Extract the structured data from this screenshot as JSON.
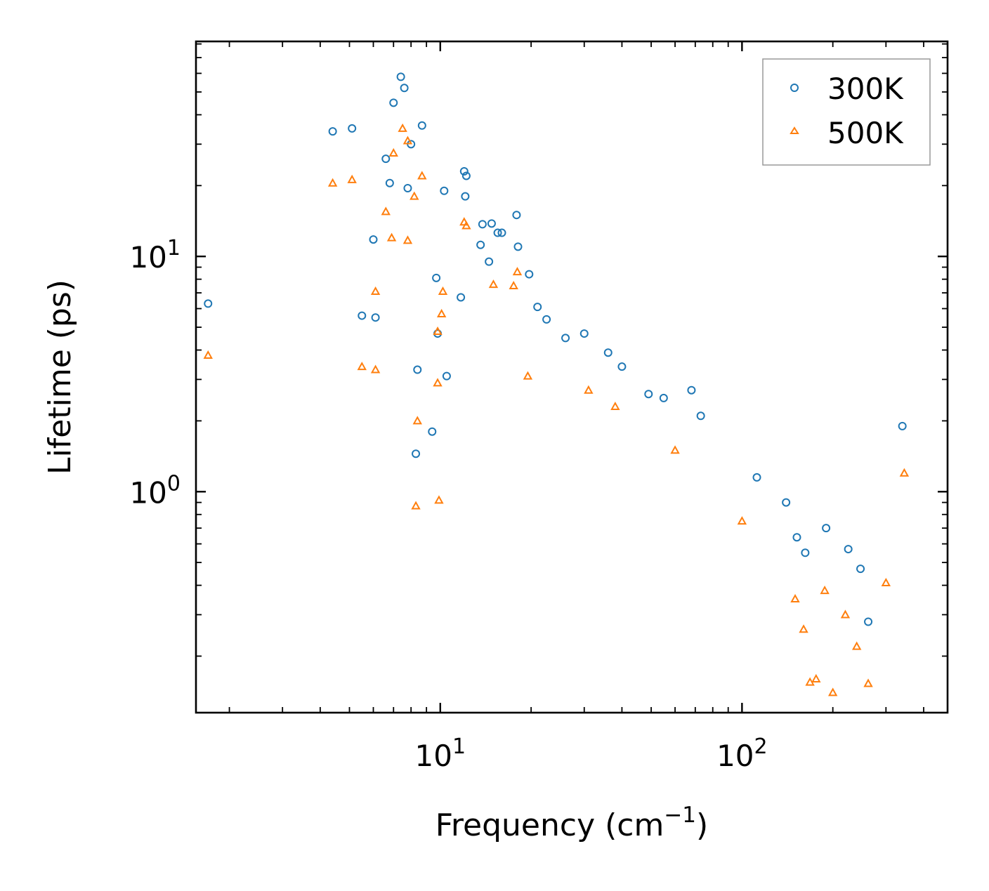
{
  "chart_data": {
    "type": "scatter",
    "title": "",
    "xlabel": "Frequency (cm",
    "xlabel_sup": "−1",
    "xlabel_end": ")",
    "ylabel": "Lifetime (ps)",
    "xscale": "log",
    "yscale": "log",
    "xlim": [
      1.55,
      480
    ],
    "ylim": [
      0.115,
      82
    ],
    "x_ticks": [
      {
        "value": 10,
        "base": "10",
        "exp": "1"
      },
      {
        "value": 100,
        "base": "10",
        "exp": "2"
      }
    ],
    "y_ticks": [
      {
        "value": 1,
        "base": "10",
        "exp": "0"
      },
      {
        "value": 10,
        "base": "10",
        "exp": "1"
      }
    ],
    "legend_position": "top-right",
    "series": [
      {
        "name": "300K",
        "marker": "circle",
        "color": "#1f77b4",
        "points": [
          [
            1.7,
            6.3
          ],
          [
            4.4,
            34
          ],
          [
            5.1,
            35
          ],
          [
            5.5,
            5.6
          ],
          [
            6.0,
            11.8
          ],
          [
            6.1,
            5.5
          ],
          [
            6.6,
            26
          ],
          [
            6.8,
            20.5
          ],
          [
            7.0,
            45
          ],
          [
            7.4,
            58
          ],
          [
            7.6,
            52
          ],
          [
            7.8,
            19.5
          ],
          [
            8.0,
            30
          ],
          [
            8.3,
            1.45
          ],
          [
            8.4,
            3.3
          ],
          [
            8.7,
            36
          ],
          [
            9.4,
            1.8
          ],
          [
            9.7,
            8.1
          ],
          [
            9.8,
            4.7
          ],
          [
            10.3,
            19
          ],
          [
            10.5,
            3.1
          ],
          [
            11.7,
            6.7
          ],
          [
            12.0,
            23
          ],
          [
            12.1,
            18
          ],
          [
            12.2,
            22
          ],
          [
            13.6,
            11.2
          ],
          [
            13.8,
            13.7
          ],
          [
            14.5,
            9.5
          ],
          [
            14.8,
            13.8
          ],
          [
            15.5,
            12.6
          ],
          [
            16.0,
            12.6
          ],
          [
            17.9,
            15
          ],
          [
            18.1,
            11
          ],
          [
            19.7,
            8.4
          ],
          [
            21.0,
            6.1
          ],
          [
            22.5,
            5.4
          ],
          [
            26,
            4.5
          ],
          [
            30,
            4.7
          ],
          [
            36,
            3.9
          ],
          [
            40,
            3.4
          ],
          [
            49,
            2.6
          ],
          [
            55,
            2.5
          ],
          [
            68,
            2.7
          ],
          [
            73,
            2.1
          ],
          [
            112,
            1.15
          ],
          [
            140,
            0.9
          ],
          [
            152,
            0.64
          ],
          [
            162,
            0.55
          ],
          [
            190,
            0.7
          ],
          [
            225,
            0.57
          ],
          [
            247,
            0.47
          ],
          [
            262,
            0.28
          ],
          [
            340,
            1.9
          ]
        ]
      },
      {
        "name": "500K",
        "marker": "triangle",
        "color": "#ff7f0e",
        "points": [
          [
            1.7,
            3.8
          ],
          [
            4.4,
            20.5
          ],
          [
            5.1,
            21.2
          ],
          [
            5.5,
            3.4
          ],
          [
            6.1,
            7.1
          ],
          [
            6.1,
            3.3
          ],
          [
            6.6,
            15.5
          ],
          [
            6.9,
            12
          ],
          [
            7.0,
            27.5
          ],
          [
            7.5,
            35
          ],
          [
            7.8,
            31
          ],
          [
            7.8,
            11.7
          ],
          [
            8.2,
            18
          ],
          [
            8.3,
            0.87
          ],
          [
            8.4,
            2.0
          ],
          [
            8.7,
            22
          ],
          [
            9.8,
            4.8
          ],
          [
            9.8,
            2.9
          ],
          [
            9.9,
            0.92
          ],
          [
            10.1,
            5.7
          ],
          [
            10.2,
            7.1
          ],
          [
            12.0,
            14
          ],
          [
            12.2,
            13.5
          ],
          [
            15.0,
            7.6
          ],
          [
            17.5,
            7.5
          ],
          [
            18.0,
            8.6
          ],
          [
            19.5,
            3.1
          ],
          [
            31,
            2.7
          ],
          [
            38,
            2.3
          ],
          [
            60,
            1.5
          ],
          [
            100,
            0.75
          ],
          [
            150,
            0.35
          ],
          [
            160,
            0.26
          ],
          [
            168,
            0.155
          ],
          [
            176,
            0.16
          ],
          [
            188,
            0.38
          ],
          [
            200,
            0.14
          ],
          [
            220,
            0.3
          ],
          [
            240,
            0.22
          ],
          [
            262,
            0.153
          ],
          [
            300,
            0.41
          ],
          [
            345,
            1.2
          ]
        ]
      }
    ],
    "legend_entries": [
      "300K",
      "500K"
    ]
  }
}
